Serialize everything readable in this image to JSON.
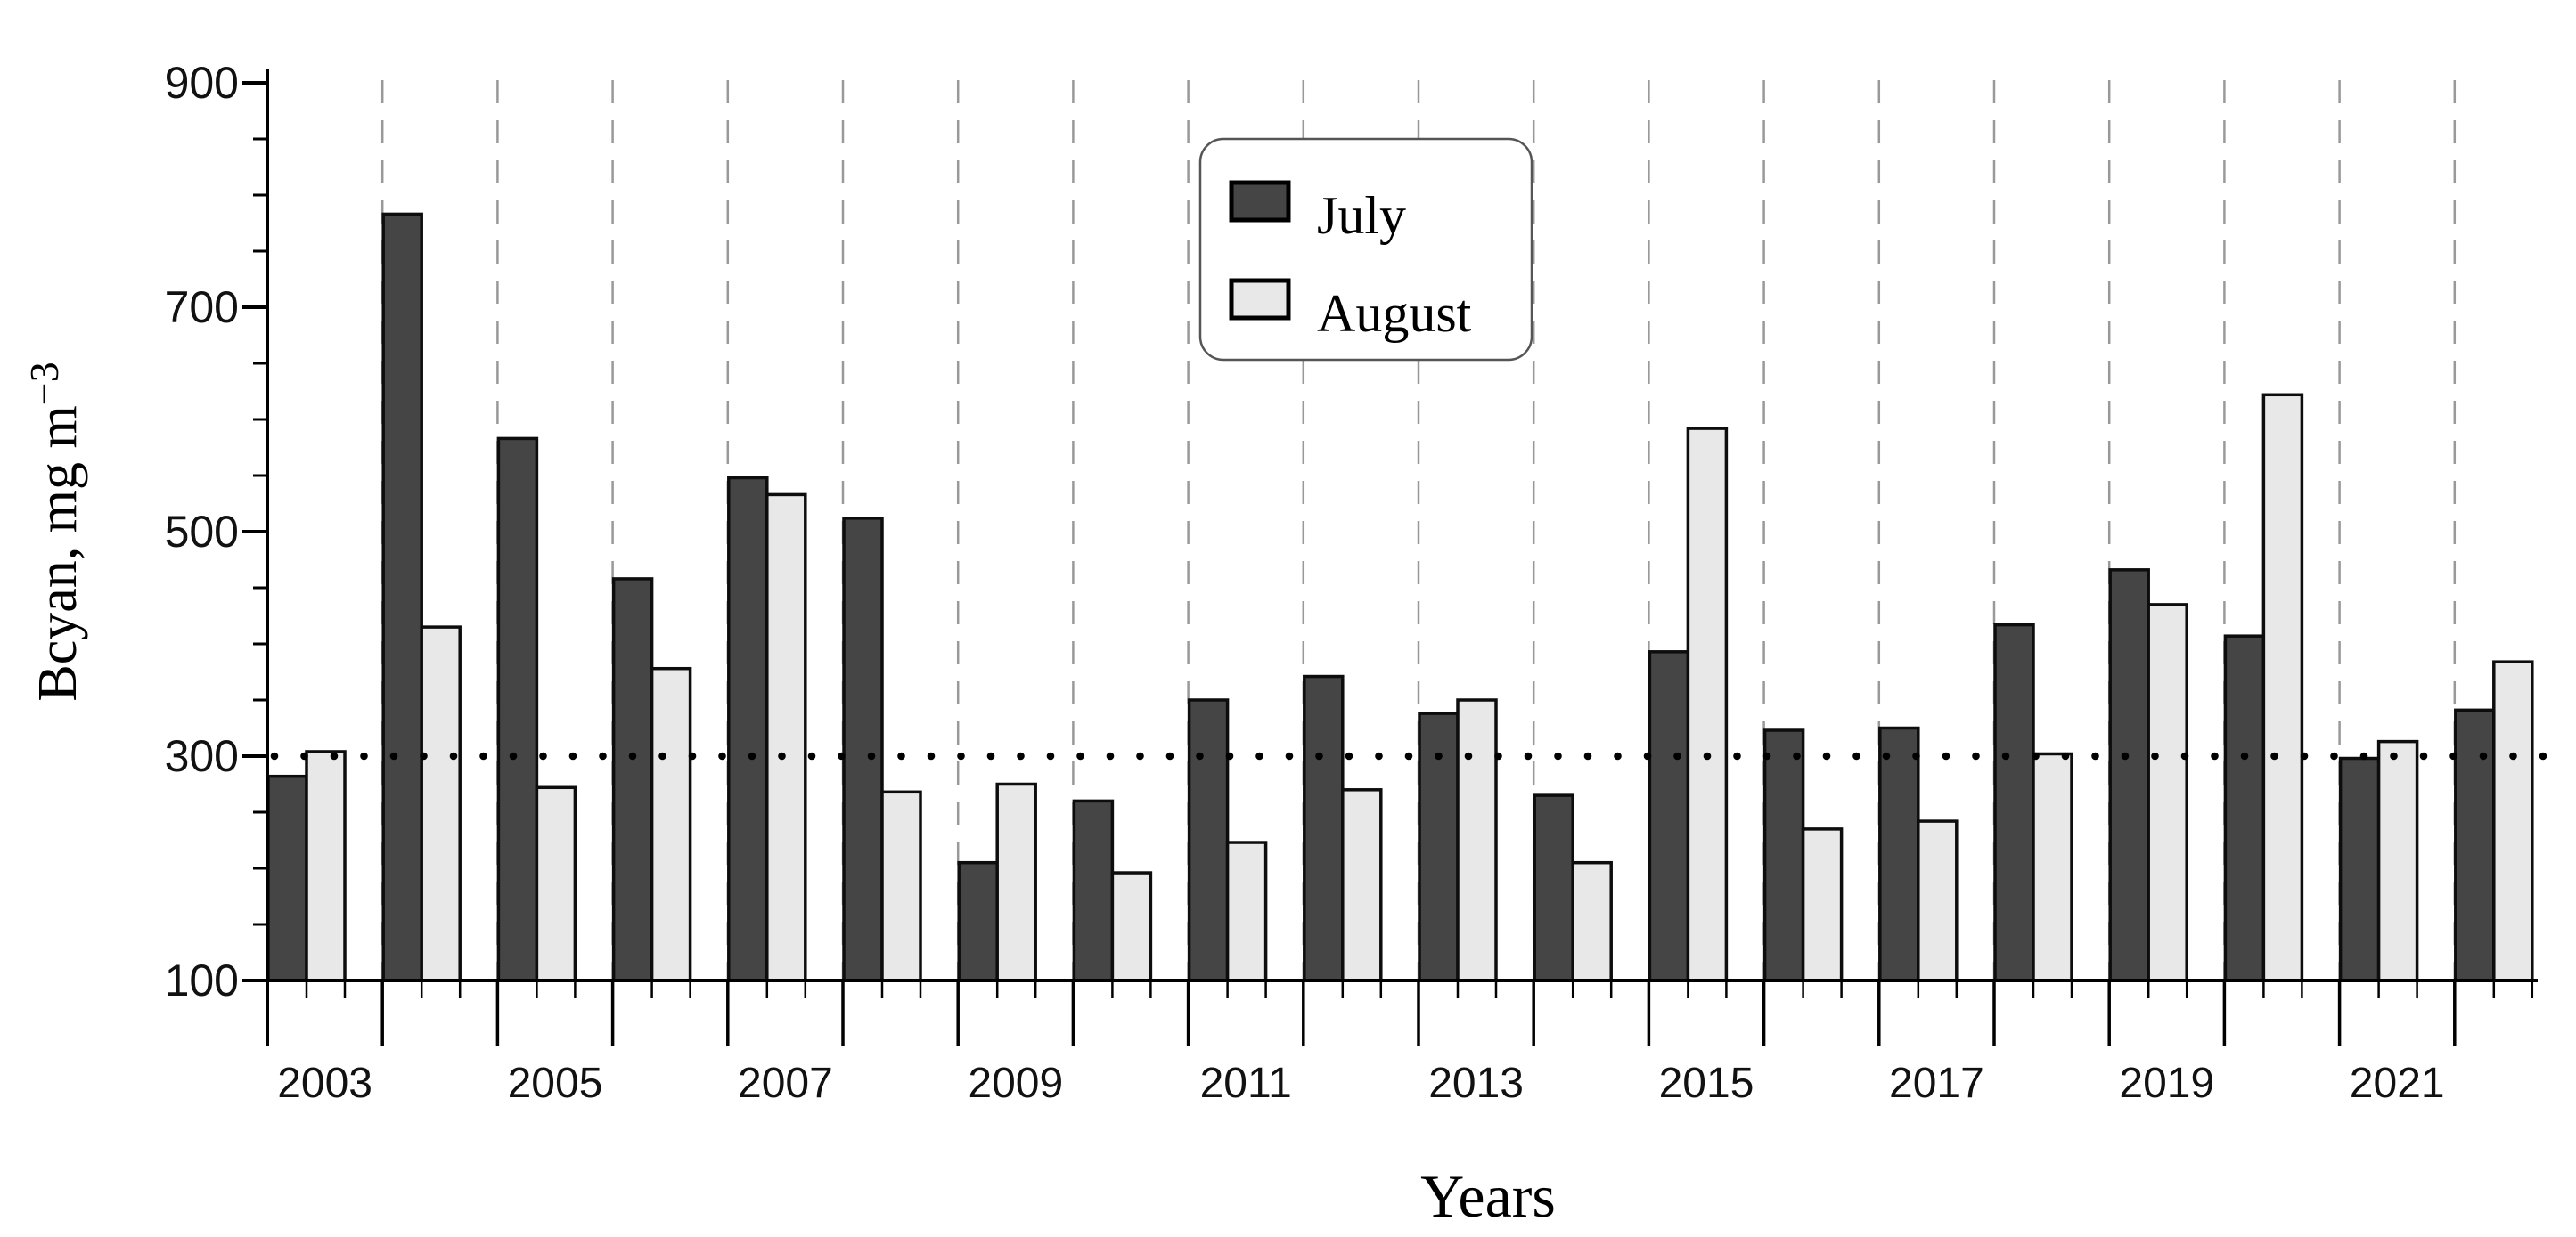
{
  "y_axis": {
    "title": "Bcyan, mg m",
    "title_superscript": "−3",
    "major_tick_labels": [
      900,
      700,
      500,
      300,
      100
    ],
    "min": 100,
    "max": 900,
    "major_step": 200,
    "minor_step": 50
  },
  "x_axis": {
    "title": "Years",
    "tick_labels": [
      2003,
      2005,
      2007,
      2009,
      2011,
      2013,
      2015,
      2017,
      2019,
      2021
    ]
  },
  "legend": {
    "items": [
      {
        "label": "July",
        "color": "#454545"
      },
      {
        "label": "August",
        "color": "#e8e8e8"
      }
    ]
  },
  "reference_line": {
    "value": 300,
    "style": "dotted",
    "color": "#000000"
  },
  "colors": {
    "bar_stroke": "#0d0d0d",
    "axis": "#000000",
    "gridline": "#999999",
    "background": "#ffffff"
  },
  "chart_data": {
    "type": "bar",
    "title": "",
    "xlabel": "Years",
    "ylabel": "Bcyan, mg m−3",
    "ylim": [
      100,
      900
    ],
    "y_major_step": 200,
    "y_minor_step": 50,
    "grid": "vertical dashed lines at each year boundary",
    "legend_position": "top-center",
    "reference_line_y": 300,
    "categories": [
      2003,
      2004,
      2005,
      2006,
      2007,
      2008,
      2009,
      2010,
      2011,
      2012,
      2013,
      2014,
      2015,
      2016,
      2017,
      2018,
      2019,
      2020,
      2021,
      2022
    ],
    "series": [
      {
        "name": "July",
        "color": "#454545",
        "values": [
          282,
          783,
          583,
          458,
          548,
          512,
          205,
          260,
          350,
          371,
          338,
          265,
          393,
          323,
          325,
          417,
          466,
          407,
          298,
          341
        ]
      },
      {
        "name": "August",
        "color": "#e8e8e8",
        "values": [
          304,
          415,
          272,
          378,
          533,
          268,
          275,
          196,
          223,
          270,
          350,
          205,
          592,
          235,
          242,
          302,
          435,
          622,
          313,
          384
        ]
      }
    ]
  }
}
